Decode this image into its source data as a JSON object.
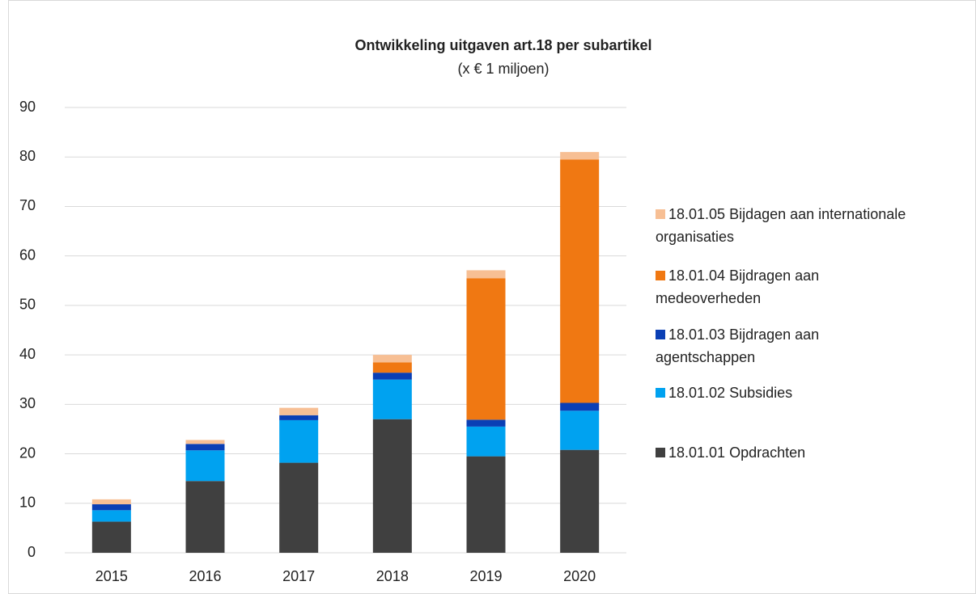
{
  "chart_data": {
    "type": "stacked_bar",
    "title": "Ontwikkeling uitgaven art.18 per subartikel",
    "subtitle": "(x € 1 miljoen)",
    "categories": [
      "2015",
      "2016",
      "2017",
      "2018",
      "2019",
      "2020"
    ],
    "series": [
      {
        "name": "18.01.01 Opdrachten",
        "color": "#404040",
        "values": [
          6.3,
          14.5,
          18.2,
          27.0,
          19.5,
          20.8
        ]
      },
      {
        "name": "18.01.02 Subsidies",
        "color": "#00a2f0",
        "values": [
          2.3,
          6.2,
          8.6,
          8.0,
          6.0,
          7.9
        ]
      },
      {
        "name": "18.01.03 Bijdragen aan agentschappen",
        "color": "#0a3fb5",
        "values": [
          1.2,
          1.3,
          1.0,
          1.4,
          1.4,
          1.6
        ]
      },
      {
        "name": "18.01.04 Bijdragen aan medeoverheden",
        "color": "#f07812",
        "values": [
          0,
          0,
          0,
          2.1,
          28.6,
          49.2
        ]
      },
      {
        "name": "18.01.05 Bijdagen aan internationale organisaties",
        "color": "#f7bf94",
        "values": [
          1.0,
          0.8,
          1.5,
          1.5,
          1.6,
          1.5
        ]
      }
    ],
    "ylim": [
      0,
      90
    ],
    "yticks": [
      0,
      10,
      20,
      30,
      40,
      50,
      60,
      70,
      80,
      90
    ],
    "grid": true,
    "legend": "right"
  }
}
